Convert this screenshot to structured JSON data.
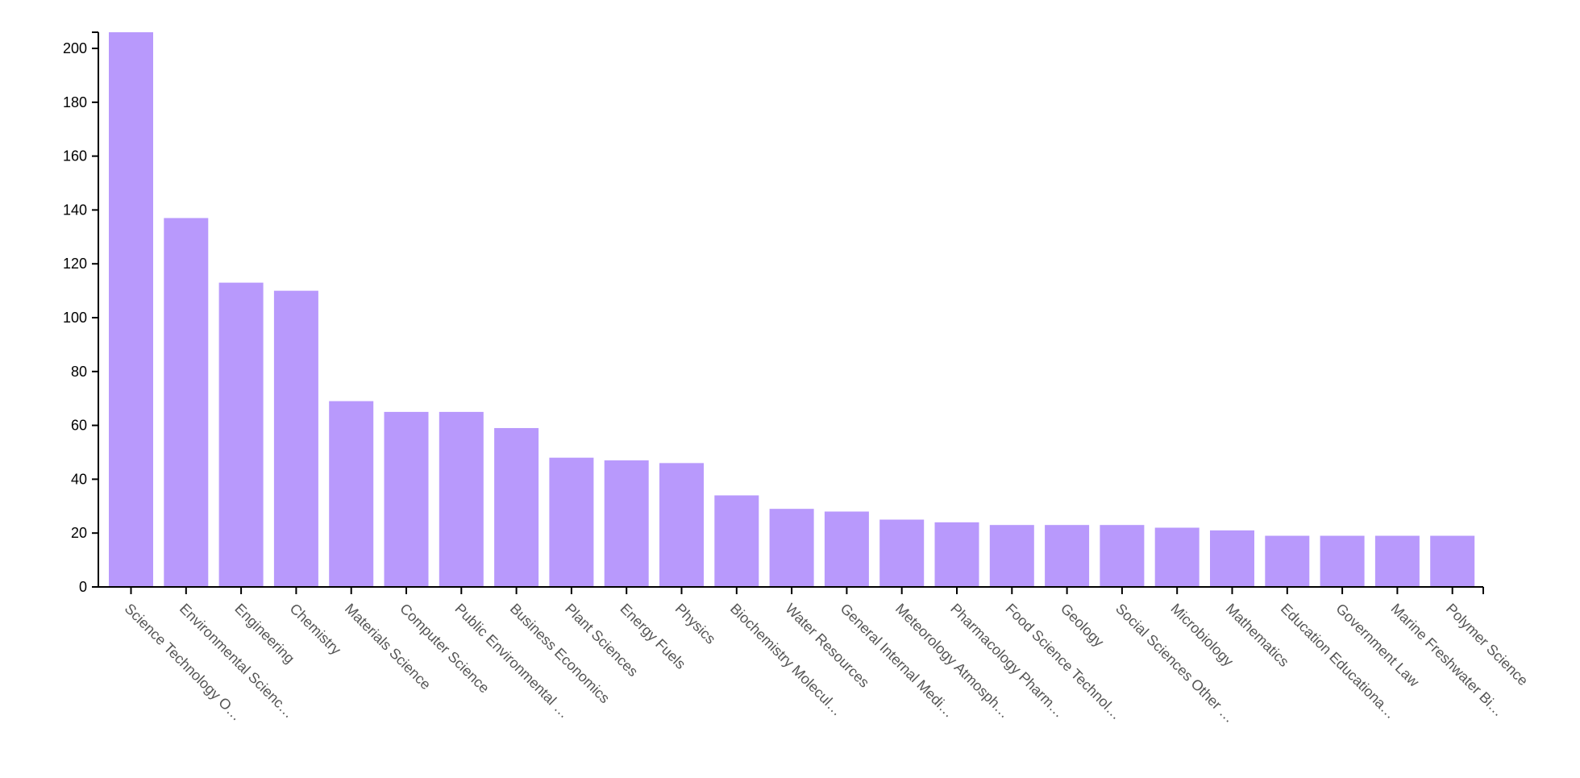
{
  "chart_data": {
    "type": "bar",
    "title": "",
    "xlabel": "",
    "ylabel": "",
    "ylim": [
      0,
      206
    ],
    "yticks": [
      0,
      20,
      40,
      60,
      80,
      100,
      120,
      140,
      160,
      180,
      200
    ],
    "grid": false,
    "bar_color": "#b899fc",
    "axis_color": "#000000",
    "categories": [
      "Science Technology O…",
      "Environmental Scienc…",
      "Engineering",
      "Chemistry",
      "Materials Science",
      "Computer Science",
      "Public Environmental …",
      "Business Economics",
      "Plant Sciences",
      "Energy Fuels",
      "Physics",
      "Biochemistry Molecul…",
      "Water Resources",
      "General Internal Medi…",
      "Meteorology Atmosph…",
      "Pharmacology Pharm…",
      "Food Science Technol…",
      "Geology",
      "Social Sciences Other …",
      "Microbiology",
      "Mathematics",
      "Education Educationa…",
      "Government Law",
      "Marine Freshwater Bi…",
      "Polymer Science"
    ],
    "values": [
      206,
      137,
      113,
      110,
      69,
      65,
      65,
      59,
      48,
      47,
      46,
      34,
      29,
      28,
      25,
      24,
      23,
      23,
      23,
      22,
      21,
      19,
      19,
      19,
      19
    ]
  }
}
